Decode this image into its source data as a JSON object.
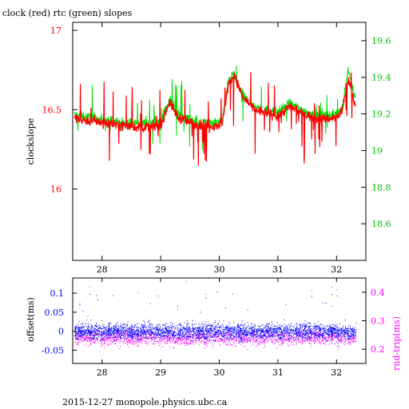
{
  "title": "clock (red) rtc (green) slopes",
  "footer": "2015-12-27 monopole.physics.ubc.ca",
  "colors": {
    "clock": "#ff0000",
    "rtc": "#00e000",
    "offset": "#0000ff",
    "rndtrip": "#ff00ff",
    "axis_top_left": "#ff0000",
    "axis_top_right": "#00c000",
    "axis_bottom_left": "#0000ff",
    "axis_bottom_right": "#ff00ff"
  },
  "chart_data": [
    {
      "type": "line",
      "title": "clock (red) rtc (green) slopes",
      "ylabel": "clockslope",
      "xlim": [
        27.5,
        32.5
      ],
      "ylim": [
        15.55,
        17.05
      ],
      "y2lim": [
        18.4,
        19.7
      ],
      "x_ticks": [
        28,
        29,
        30,
        31,
        32
      ],
      "y_ticks": [
        16,
        16.5,
        17
      ],
      "y2_ticks": [
        18.6,
        18.8,
        19,
        19.2,
        19.4,
        19.6
      ],
      "grid": false,
      "series": [
        {
          "name": "clock",
          "axis": "left",
          "x": [
            27.5,
            27.6,
            27.8,
            28.0,
            28.2,
            28.4,
            28.6,
            28.8,
            29.0,
            29.15,
            29.3,
            29.5,
            29.7,
            29.9,
            30.05,
            30.15,
            30.25,
            30.4,
            30.6,
            30.8,
            31.0,
            31.2,
            31.4,
            31.6,
            31.8,
            32.0,
            32.1,
            32.2,
            32.3
          ],
          "y": [
            16.45,
            16.44,
            16.43,
            16.42,
            16.41,
            16.4,
            16.39,
            16.39,
            16.4,
            16.55,
            16.45,
            16.42,
            16.4,
            16.4,
            16.41,
            16.65,
            16.72,
            16.58,
            16.5,
            16.48,
            16.46,
            16.52,
            16.48,
            16.45,
            16.44,
            16.45,
            16.5,
            16.7,
            16.55
          ]
        },
        {
          "name": "rtc",
          "axis": "right",
          "x": [
            27.5,
            27.6,
            27.8,
            28.0,
            28.2,
            28.4,
            28.6,
            28.8,
            29.0,
            29.15,
            29.3,
            29.5,
            29.7,
            29.9,
            30.05,
            30.15,
            30.25,
            30.4,
            30.6,
            30.8,
            31.0,
            31.2,
            31.4,
            31.6,
            31.8,
            32.0,
            32.1,
            32.2,
            32.3
          ],
          "y": [
            19.2,
            19.19,
            19.18,
            19.17,
            19.16,
            19.15,
            19.15,
            19.15,
            19.16,
            19.28,
            19.2,
            19.17,
            19.15,
            19.15,
            19.16,
            19.38,
            19.42,
            19.3,
            19.24,
            19.22,
            19.21,
            19.26,
            19.22,
            19.2,
            19.19,
            19.2,
            19.24,
            19.45,
            19.3
          ]
        }
      ]
    },
    {
      "type": "scatter",
      "ylabel": "offset(ms)",
      "y2label": "rnd-trip(ms)",
      "xlim": [
        27.5,
        32.5
      ],
      "ylim": [
        -0.085,
        0.14
      ],
      "y2lim": [
        0.15,
        0.45
      ],
      "x_ticks": [
        28,
        29,
        30,
        31,
        32
      ],
      "y_ticks": [
        -0.05,
        0,
        0.05,
        0.1
      ],
      "y2_ticks": [
        0.2,
        0.3,
        0.4
      ],
      "grid": false,
      "series": [
        {
          "name": "offset",
          "axis": "left",
          "center": 0.0,
          "spread": 0.02
        },
        {
          "name": "rnd-trip",
          "axis": "right",
          "center": 0.24,
          "spread": 0.025
        }
      ]
    }
  ]
}
